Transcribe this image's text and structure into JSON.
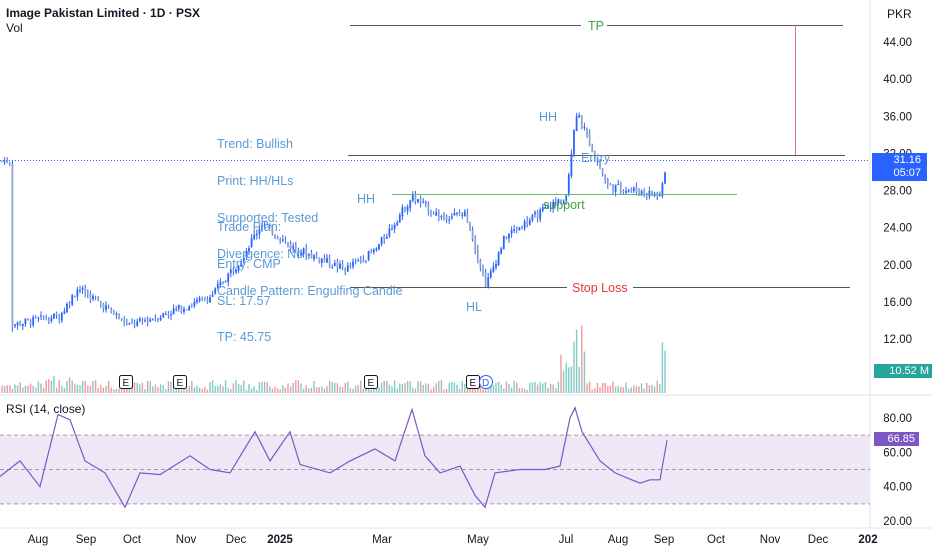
{
  "header": {
    "title": "Image Pakistan Limited · 1D · PSX",
    "vol_label": "Vol",
    "rsi_label": "RSI (14, close)",
    "currency": "PKR"
  },
  "price_axis": {
    "ticks": [
      "44.00",
      "40.00",
      "36.00",
      "32.00",
      "28.00",
      "24.00",
      "20.00",
      "16.00",
      "12.00"
    ],
    "last_price": "31.16",
    "countdown": "05:07",
    "volume_value": "10.52 M"
  },
  "rsi_axis": {
    "ticks": [
      "80.00",
      "60.00",
      "40.00",
      "20.00"
    ],
    "last_value": "66.85"
  },
  "time_axis": [
    "Aug",
    "Sep",
    "Oct",
    "Nov",
    "Dec",
    "2025",
    "Mar",
    "May",
    "Jul",
    "Aug",
    "Sep",
    "Oct",
    "Nov",
    "Dec",
    "202"
  ],
  "annotations": {
    "trend_notes": [
      "Trend: Bullish",
      "Print: HH/HLs",
      "Supported: Tested",
      "Divergence: No",
      "Candle Pattern: Engulfing Candle"
    ],
    "trade_plan": [
      "Trade Plan:",
      "Entry: CMP",
      "SL: 17.57",
      "TP: 45.75"
    ],
    "tp_label": "TP",
    "entry_label": "Entry",
    "stop_label": "Stop Loss",
    "support_label": "support",
    "hh1": "HH",
    "hh2": "HH",
    "hl": "HL",
    "event_markers": [
      "E",
      "E",
      "E",
      "E",
      "D"
    ]
  },
  "colors": {
    "up": "#26a69a",
    "down": "#ef5350",
    "candle": "#2962ff",
    "annotation": "#5b9bd5",
    "tp": "#43a047",
    "stop": "#e53935",
    "rsi_line": "#7e57c2",
    "rsi_fill": "#ede7f6"
  },
  "chart_data": {
    "type": "candlestick",
    "symbol": "Image Pakistan Limited",
    "interval": "1D",
    "exchange": "PSX",
    "currency": "PKR",
    "x_axis": [
      "Aug",
      "Sep",
      "Oct",
      "Nov",
      "Dec",
      "2025",
      "Mar",
      "May",
      "Jul",
      "Aug",
      "Sep"
    ],
    "ylim": [
      10,
      47
    ],
    "levels": {
      "take_profit": 45.75,
      "entry": 31.7,
      "support": 27.5,
      "stop_loss": 17.57,
      "last_price": 31.16
    },
    "price_path": [
      {
        "x": "Aug",
        "y": 13.5
      },
      {
        "x": "Sep",
        "y": 14.5
      },
      {
        "x": "Sep",
        "y": 17.5
      },
      {
        "x": "Oct",
        "y": 15.5
      },
      {
        "x": "Oct",
        "y": 13.4
      },
      {
        "x": "Nov",
        "y": 14.5
      },
      {
        "x": "Dec",
        "y": 16.5
      },
      {
        "x": "Dec",
        "y": 20.5
      },
      {
        "x": "2025",
        "y": 24.5
      },
      {
        "x": "2025",
        "y": 22
      },
      {
        "x": "Mar",
        "y": 19.5
      },
      {
        "x": "Mar",
        "y": 21.5
      },
      {
        "x": "Apr",
        "y": 27.3
      },
      {
        "x": "Apr",
        "y": 25.2
      },
      {
        "x": "May",
        "y": 25.5
      },
      {
        "x": "May",
        "y": 17.8
      },
      {
        "x": "Jun",
        "y": 23
      },
      {
        "x": "Jul",
        "y": 27.5
      },
      {
        "x": "Jul",
        "y": 36.5
      },
      {
        "x": "Aug",
        "y": 28.5
      },
      {
        "x": "Aug",
        "y": 27.5
      },
      {
        "x": "Sep",
        "y": 31.16
      }
    ],
    "volume_last": "10.52 M",
    "rsi": {
      "period": 14,
      "source": "close",
      "last": 66.85,
      "ylim": [
        15,
        90
      ],
      "overbought": 70,
      "middle": 50,
      "oversold": 30
    }
  }
}
